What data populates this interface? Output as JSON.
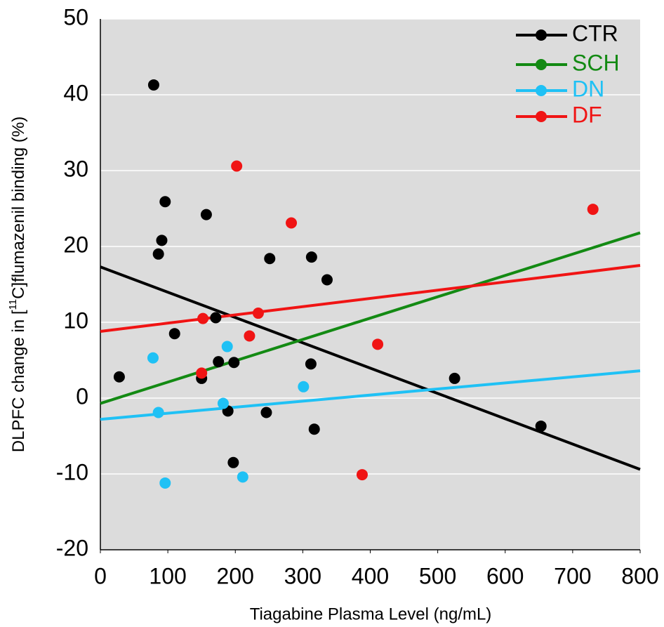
{
  "chart_data": {
    "type": "scatter",
    "xlabel": "Tiagabine Plasma Level (ng/mL)",
    "ylabel": [
      "DLPFC change in [",
      "11",
      "C]flumazenil binding (%)"
    ],
    "xlim": [
      0,
      800
    ],
    "ylim": [
      -20,
      50
    ],
    "xticks": [
      0,
      100,
      200,
      300,
      400,
      500,
      600,
      700,
      800
    ],
    "yticks": [
      -20,
      -10,
      0,
      10,
      20,
      30,
      40,
      50
    ],
    "grid": true,
    "legend": "upper right",
    "series": [
      {
        "name": "CTR",
        "color": "#000000",
        "x": [
          79,
          28,
          86,
          91,
          96,
          110,
          150,
          157,
          171,
          175,
          189,
          198,
          197,
          246,
          251,
          312,
          313,
          317,
          336,
          525,
          653
        ],
        "values": [
          41.3,
          2.8,
          19.0,
          20.8,
          25.9,
          8.5,
          2.6,
          24.2,
          10.6,
          4.8,
          -1.7,
          4.7,
          -8.5,
          -1.9,
          18.4,
          4.5,
          18.6,
          -4.1,
          15.6,
          2.6,
          -3.7
        ],
        "fit": {
          "x": [
            0,
            800
          ],
          "values": [
            17.3,
            -9.4
          ]
        }
      },
      {
        "name": "SCH",
        "color": "#138a13",
        "x": [],
        "values": [],
        "fit": {
          "x": [
            0,
            800
          ],
          "values": [
            -0.7,
            21.8
          ]
        }
      },
      {
        "name": "DN",
        "color": "#1fc1f5",
        "x": [
          78,
          86,
          96,
          182,
          188,
          211,
          301
        ],
        "values": [
          5.3,
          -1.9,
          -11.2,
          -0.7,
          6.8,
          -10.4,
          1.5
        ],
        "fit": {
          "x": [
            0,
            800
          ],
          "values": [
            -2.8,
            3.6
          ]
        }
      },
      {
        "name": "DF",
        "color": "#f01414",
        "x": [
          202,
          152,
          150,
          221,
          234,
          283,
          411,
          388,
          730
        ],
        "values": [
          30.6,
          10.5,
          3.3,
          8.2,
          11.2,
          23.1,
          7.1,
          -10.1,
          24.9
        ],
        "fit": {
          "x": [
            0,
            800
          ],
          "values": [
            8.8,
            17.5
          ]
        }
      }
    ]
  }
}
